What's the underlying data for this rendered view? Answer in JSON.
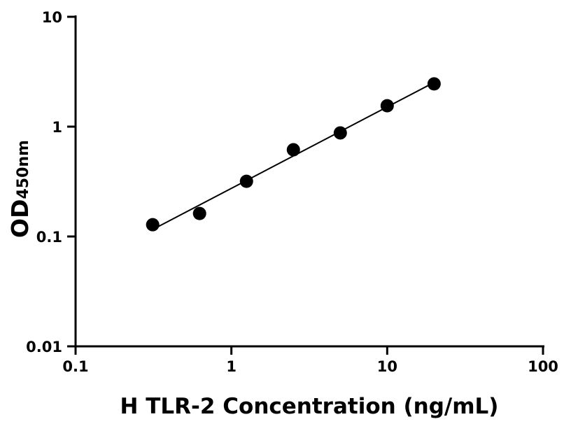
{
  "chart_data": {
    "type": "scatter",
    "xlabel": "H TLR-2 Concentration (ng/mL)",
    "ylabel_main": "OD",
    "ylabel_sub": "450nm",
    "x_scale": "log",
    "y_scale": "log",
    "xlim": [
      0.1,
      100
    ],
    "ylim": [
      0.01,
      10
    ],
    "x_ticks": [
      "0.1",
      "1",
      "10",
      "100"
    ],
    "y_ticks": [
      "0.01",
      "0.1",
      "1",
      "10"
    ],
    "grid": false,
    "fit_line": "linear (log-log)",
    "point_color": "#000000",
    "series": [
      {
        "x": [
          0.3125,
          0.625,
          1.25,
          2.5,
          5,
          10,
          20
        ],
        "y": [
          0.128,
          0.162,
          0.318,
          0.616,
          0.877,
          1.55,
          2.45
        ]
      }
    ]
  }
}
